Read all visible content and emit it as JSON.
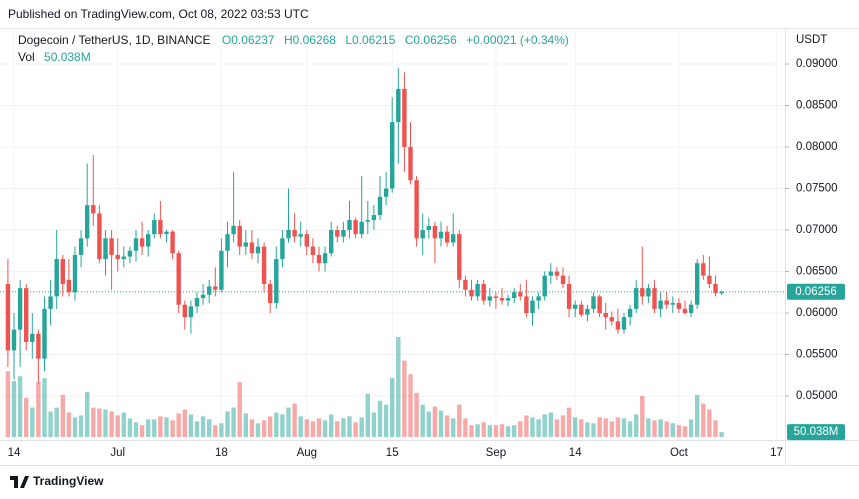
{
  "header": {
    "published": "Published on TradingView.com, Oct 08, 2022 03:53 UTC"
  },
  "footer": {
    "logo": "TradingView"
  },
  "chart_data": {
    "type": "candlestick",
    "title": "Dogecoin / TetherUS, 1D, BINANCE",
    "legend": [
      "O0.06237",
      "H0.06268",
      "L0.06215",
      "C0.06256",
      "+0.00021 (+0.34%)"
    ],
    "currency": "USDT",
    "up_color": "#26a69a",
    "down_color": "#ef5350",
    "grid": true,
    "categories": [
      "Jun 13",
      "Jun 14",
      "Jun 15",
      "Jun 16",
      "Jun 17",
      "Jun 18",
      "Jun 19",
      "Jun 20",
      "Jun 21",
      "Jun 22",
      "Jun 23",
      "Jun 24",
      "Jun 25",
      "Jun 26",
      "Jun 27",
      "Jun 28",
      "Jun 29",
      "Jun 30",
      "Jul 1",
      "Jul 2",
      "Jul 3",
      "Jul 4",
      "Jul 5",
      "Jul 6",
      "Jul 7",
      "Jul 8",
      "Jul 9",
      "Jul 10",
      "Jul 11",
      "Jul 12",
      "Jul 13",
      "Jul 14",
      "Jul 15",
      "Jul 16",
      "Jul 17",
      "Jul 18",
      "Jul 19",
      "Jul 20",
      "Jul 21",
      "Jul 22",
      "Jul 23",
      "Jul 24",
      "Jul 25",
      "Jul 26",
      "Jul 27",
      "Jul 28",
      "Jul 29",
      "Jul 30",
      "Jul 31",
      "Aug 1",
      "Aug 2",
      "Aug 3",
      "Aug 4",
      "Aug 5",
      "Aug 6",
      "Aug 7",
      "Aug 8",
      "Aug 9",
      "Aug 10",
      "Aug 11",
      "Aug 12",
      "Aug 13",
      "Aug 14",
      "Aug 15",
      "Aug 16",
      "Aug 17",
      "Aug 18",
      "Aug 19",
      "Aug 20",
      "Aug 21",
      "Aug 22",
      "Aug 23",
      "Aug 24",
      "Aug 25",
      "Aug 26",
      "Aug 27",
      "Aug 28",
      "Aug 29",
      "Aug 30",
      "Aug 31",
      "Sep 1",
      "Sep 2",
      "Sep 3",
      "Sep 4",
      "Sep 5",
      "Sep 6",
      "Sep 7",
      "Sep 8",
      "Sep 9",
      "Sep 10",
      "Sep 11",
      "Sep 12",
      "Sep 13",
      "Sep 14",
      "Sep 15",
      "Sep 16",
      "Sep 17",
      "Sep 18",
      "Sep 19",
      "Sep 20",
      "Sep 21",
      "Sep 22",
      "Sep 23",
      "Sep 24",
      "Sep 25",
      "Sep 26",
      "Sep 27",
      "Sep 28",
      "Sep 29",
      "Sep 30",
      "Oct 1",
      "Oct 2",
      "Oct 3",
      "Oct 4",
      "Oct 5",
      "Oct 6",
      "Oct 7",
      "Oct 8"
    ],
    "open": [
      0.0635,
      0.0555,
      0.058,
      0.063,
      0.0565,
      0.0575,
      0.0545,
      0.0605,
      0.062,
      0.0665,
      0.064,
      0.0625,
      0.067,
      0.069,
      0.073,
      0.072,
      0.0665,
      0.069,
      0.067,
      0.0665,
      0.0668,
      0.0675,
      0.069,
      0.068,
      0.0695,
      0.0712,
      0.0695,
      0.0698,
      0.0672,
      0.061,
      0.0595,
      0.0608,
      0.0618,
      0.0622,
      0.0632,
      0.0628,
      0.0675,
      0.0695,
      0.0705,
      0.068,
      0.0685,
      0.0672,
      0.068,
      0.0635,
      0.0612,
      0.0665,
      0.069,
      0.07,
      0.0692,
      0.0695,
      0.068,
      0.067,
      0.066,
      0.0672,
      0.07,
      0.0692,
      0.07,
      0.0712,
      0.0695,
      0.071,
      0.0712,
      0.0718,
      0.074,
      0.075,
      0.083,
      0.087,
      0.08,
      0.076,
      0.069,
      0.07,
      0.0705,
      0.069,
      0.0698,
      0.0685,
      0.0695,
      0.064,
      0.0628,
      0.062,
      0.0635,
      0.0615,
      0.062,
      0.0618,
      0.0615,
      0.0618,
      0.0625,
      0.062,
      0.06,
      0.0615,
      0.062,
      0.0645,
      0.065,
      0.0645,
      0.0635,
      0.0605,
      0.061,
      0.0598,
      0.0605,
      0.062,
      0.06,
      0.0595,
      0.059,
      0.058,
      0.0595,
      0.0605,
      0.063,
      0.062,
      0.063,
      0.0605,
      0.0615,
      0.061,
      0.0612,
      0.0605,
      0.06,
      0.061,
      0.066,
      0.0645,
      0.0635,
      0.06237
    ],
    "high": [
      0.0665,
      0.06,
      0.064,
      0.0635,
      0.06,
      0.058,
      0.062,
      0.064,
      0.07,
      0.067,
      0.0665,
      0.068,
      0.07,
      0.078,
      0.079,
      0.073,
      0.07,
      0.07,
      0.069,
      0.068,
      0.068,
      0.07,
      0.071,
      0.07,
      0.072,
      0.0735,
      0.07,
      0.07,
      0.0675,
      0.0615,
      0.0615,
      0.0625,
      0.0635,
      0.064,
      0.0655,
      0.069,
      0.071,
      0.077,
      0.0712,
      0.07,
      0.07,
      0.069,
      0.0685,
      0.064,
      0.068,
      0.07,
      0.075,
      0.072,
      0.071,
      0.07,
      0.069,
      0.068,
      0.068,
      0.071,
      0.0705,
      0.071,
      0.0735,
      0.0715,
      0.0765,
      0.0735,
      0.073,
      0.0765,
      0.077,
      0.086,
      0.0895,
      0.089,
      0.083,
      0.0765,
      0.072,
      0.0715,
      0.071,
      0.071,
      0.0705,
      0.072,
      0.07,
      0.0645,
      0.064,
      0.064,
      0.064,
      0.063,
      0.0625,
      0.063,
      0.0622,
      0.063,
      0.0635,
      0.064,
      0.062,
      0.0625,
      0.065,
      0.066,
      0.0655,
      0.0655,
      0.0645,
      0.0615,
      0.0615,
      0.061,
      0.0625,
      0.0622,
      0.0612,
      0.0602,
      0.0605,
      0.06,
      0.061,
      0.064,
      0.068,
      0.0635,
      0.064,
      0.0625,
      0.0625,
      0.062,
      0.0618,
      0.0615,
      0.0615,
      0.0665,
      0.067,
      0.0668,
      0.0645,
      0.06268
    ],
    "low": [
      0.0535,
      0.052,
      0.0535,
      0.0555,
      0.0545,
      0.0515,
      0.053,
      0.0585,
      0.0605,
      0.062,
      0.062,
      0.0615,
      0.0655,
      0.068,
      0.0705,
      0.066,
      0.0645,
      0.0628,
      0.065,
      0.0655,
      0.066,
      0.0662,
      0.067,
      0.0668,
      0.069,
      0.069,
      0.0685,
      0.0665,
      0.06,
      0.058,
      0.0575,
      0.06,
      0.061,
      0.0612,
      0.062,
      0.0625,
      0.0655,
      0.0685,
      0.067,
      0.067,
      0.0665,
      0.066,
      0.0625,
      0.06,
      0.0605,
      0.0655,
      0.0685,
      0.0685,
      0.068,
      0.067,
      0.066,
      0.065,
      0.065,
      0.0668,
      0.0685,
      0.0685,
      0.069,
      0.069,
      0.069,
      0.0695,
      0.07,
      0.0712,
      0.073,
      0.0745,
      0.078,
      0.077,
      0.0755,
      0.068,
      0.067,
      0.069,
      0.066,
      0.068,
      0.068,
      0.068,
      0.063,
      0.062,
      0.0615,
      0.0615,
      0.061,
      0.0608,
      0.0605,
      0.061,
      0.0608,
      0.0612,
      0.0615,
      0.0595,
      0.0585,
      0.0605,
      0.0615,
      0.0635,
      0.064,
      0.063,
      0.0595,
      0.0595,
      0.0595,
      0.059,
      0.06,
      0.0595,
      0.058,
      0.0585,
      0.0575,
      0.0575,
      0.0585,
      0.06,
      0.061,
      0.0612,
      0.06,
      0.0595,
      0.0605,
      0.06,
      0.06,
      0.0598,
      0.0595,
      0.0605,
      0.064,
      0.063,
      0.062,
      0.06215
    ],
    "close": [
      0.0555,
      0.058,
      0.063,
      0.0565,
      0.0575,
      0.0545,
      0.0605,
      0.062,
      0.0665,
      0.0635,
      0.0625,
      0.067,
      0.069,
      0.073,
      0.072,
      0.0665,
      0.069,
      0.067,
      0.0665,
      0.0668,
      0.0675,
      0.069,
      0.068,
      0.0695,
      0.0712,
      0.0695,
      0.0698,
      0.0672,
      0.061,
      0.0595,
      0.0608,
      0.0618,
      0.0622,
      0.0632,
      0.0628,
      0.0675,
      0.0695,
      0.0705,
      0.068,
      0.0685,
      0.0672,
      0.068,
      0.0635,
      0.0612,
      0.0665,
      0.069,
      0.07,
      0.0692,
      0.0695,
      0.068,
      0.067,
      0.066,
      0.0672,
      0.07,
      0.0692,
      0.07,
      0.0712,
      0.0695,
      0.071,
      0.0712,
      0.0718,
      0.074,
      0.075,
      0.083,
      0.087,
      0.08,
      0.076,
      0.069,
      0.07,
      0.0705,
      0.069,
      0.0698,
      0.0685,
      0.0695,
      0.064,
      0.0628,
      0.062,
      0.0635,
      0.0615,
      0.062,
      0.0618,
      0.0615,
      0.0618,
      0.0625,
      0.062,
      0.06,
      0.0615,
      0.062,
      0.0645,
      0.065,
      0.0645,
      0.0635,
      0.0605,
      0.061,
      0.0598,
      0.0605,
      0.062,
      0.06,
      0.0595,
      0.059,
      0.058,
      0.0595,
      0.0605,
      0.063,
      0.062,
      0.063,
      0.0605,
      0.0615,
      0.061,
      0.0612,
      0.0605,
      0.06,
      0.061,
      0.066,
      0.0645,
      0.0635,
      0.0624,
      0.06256
    ],
    "last_label": "0.06256",
    "volume": {
      "name": "Vol",
      "values": [
        670,
        570,
        620,
        400,
        300,
        560,
        600,
        260,
        300,
        430,
        250,
        200,
        220,
        460,
        300,
        290,
        280,
        260,
        220,
        250,
        190,
        150,
        120,
        180,
        180,
        210,
        200,
        170,
        240,
        280,
        230,
        160,
        210,
        180,
        120,
        140,
        260,
        300,
        560,
        240,
        180,
        140,
        170,
        210,
        250,
        230,
        300,
        340,
        210,
        180,
        160,
        190,
        170,
        230,
        160,
        190,
        210,
        150,
        200,
        440,
        250,
        370,
        330,
        600,
        1020,
        780,
        640,
        450,
        330,
        260,
        310,
        270,
        220,
        190,
        330,
        190,
        120,
        130,
        150,
        120,
        120,
        130,
        110,
        120,
        160,
        220,
        200,
        180,
        230,
        250,
        180,
        220,
        300,
        200,
        180,
        150,
        140,
        200,
        190,
        160,
        200,
        190,
        160,
        230,
        420,
        190,
        170,
        180,
        160,
        140,
        120,
        110,
        180,
        430,
        340,
        280,
        170,
        50.038
      ],
      "last_label": "50.038M"
    },
    "ylim": [
      0.0447,
      0.0941
    ],
    "yticks": [
      {
        "value": 0.05,
        "label": "0.05000"
      },
      {
        "value": 0.055,
        "label": "0.05500"
      },
      {
        "value": 0.06,
        "label": "0.06000"
      },
      {
        "value": 0.065,
        "label": "0.06500"
      },
      {
        "value": 0.07,
        "label": "0.07000"
      },
      {
        "value": 0.075,
        "label": "0.07500"
      },
      {
        "value": 0.08,
        "label": "0.08000"
      },
      {
        "value": 0.085,
        "label": "0.08500"
      },
      {
        "value": 0.09,
        "label": "0.09000"
      }
    ],
    "xticks": [
      {
        "value": "Jun 14",
        "label": "14"
      },
      {
        "value": "Jul 1",
        "label": "Jul"
      },
      {
        "value": "Jul 18",
        "label": "18"
      },
      {
        "value": "Aug 1",
        "label": "Aug"
      },
      {
        "value": "Aug 15",
        "label": "15"
      },
      {
        "value": "Sep 1",
        "label": "Sep"
      },
      {
        "value": "Sep 14",
        "label": "14"
      },
      {
        "value": "Oct 1",
        "label": "Oct"
      },
      {
        "value": "Oct 17",
        "label": "17"
      }
    ]
  }
}
